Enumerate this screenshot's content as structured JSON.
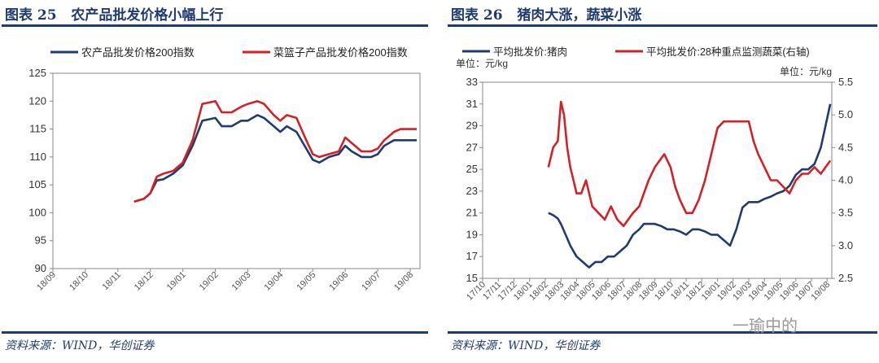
{
  "colors": {
    "navy": "#1f3b70",
    "red": "#d42027",
    "axis": "#888888",
    "text": "#333333"
  },
  "watermark": "一瑜中的",
  "chart_data": [
    {
      "type": "line",
      "figure_label": "图表 25",
      "title": "农产品批发价格小幅上行",
      "source": "资料来源：WIND，华创证券",
      "ylim": [
        90,
        125
      ],
      "yticks": [
        90,
        95,
        100,
        105,
        110,
        115,
        120,
        125
      ],
      "x_labels": [
        "18/09",
        "18/10",
        "18/11",
        "18/12",
        "19/01",
        "19/02",
        "19/03",
        "19/04",
        "19/05",
        "19/06",
        "19/07",
        "19/08"
      ],
      "x_range": [
        0,
        11.3
      ],
      "series": [
        {
          "name": "农产品批发价格200指数",
          "color": "navy",
          "x": [
            2.5,
            2.8,
            3.0,
            3.2,
            3.4,
            3.7,
            4.0,
            4.3,
            4.6,
            5.0,
            5.2,
            5.5,
            5.8,
            6.0,
            6.3,
            6.5,
            6.8,
            7.0,
            7.2,
            7.5,
            7.8,
            8.0,
            8.2,
            8.5,
            8.8,
            9.0,
            9.2,
            9.5,
            9.8,
            10.0,
            10.2,
            10.5,
            10.7,
            11.0,
            11.2
          ],
          "values": [
            102.0,
            102.5,
            103.5,
            105.8,
            106.0,
            107.0,
            108.5,
            112.0,
            116.5,
            117.0,
            115.5,
            115.5,
            116.5,
            116.5,
            117.5,
            117.0,
            115.5,
            114.5,
            115.5,
            114.5,
            111.5,
            109.5,
            109.0,
            110.0,
            110.5,
            112.0,
            111.0,
            110.0,
            110.0,
            110.5,
            112.0,
            113.0,
            113.0,
            113.0,
            113.0
          ]
        },
        {
          "name": "菜篮子产品批发价格200指数",
          "color": "red",
          "x": [
            2.5,
            2.8,
            3.0,
            3.2,
            3.4,
            3.7,
            4.0,
            4.3,
            4.6,
            5.0,
            5.2,
            5.5,
            5.8,
            6.0,
            6.3,
            6.5,
            6.8,
            7.0,
            7.2,
            7.5,
            7.8,
            8.0,
            8.2,
            8.5,
            8.8,
            9.0,
            9.2,
            9.5,
            9.8,
            10.0,
            10.2,
            10.5,
            10.7,
            11.0,
            11.2
          ],
          "values": [
            102.0,
            102.5,
            103.5,
            106.5,
            107.0,
            107.5,
            109.0,
            113.0,
            119.5,
            120.0,
            118.0,
            118.0,
            119.0,
            119.5,
            120.0,
            119.5,
            117.5,
            116.5,
            117.5,
            117.0,
            113.0,
            110.5,
            110.0,
            110.5,
            111.0,
            113.5,
            112.5,
            111.0,
            111.0,
            111.5,
            113.0,
            114.5,
            115.0,
            115.0,
            115.0
          ]
        }
      ]
    },
    {
      "type": "line",
      "figure_label": "图表 26",
      "title": "猪肉大涨，蔬菜小涨",
      "source": "资料来源：WIND，华创证券",
      "unit_left": "单位：元/kg",
      "unit_right": "单位：元/kg",
      "ylim_left": [
        15,
        33
      ],
      "yticks_left": [
        15,
        17,
        19,
        21,
        23,
        25,
        27,
        29,
        31,
        33
      ],
      "ylim_right": [
        2.5,
        5.5
      ],
      "yticks_right": [
        "2.5",
        "3.0",
        "3.5",
        "4.0",
        "4.5",
        "5.0",
        "5.5"
      ],
      "x_labels": [
        "17/10",
        "17/11",
        "17/12",
        "18/01",
        "18/02",
        "18/03",
        "18/04",
        "18/05",
        "18/06",
        "18/07",
        "18/08",
        "18/09",
        "18/10",
        "18/11",
        "18/12",
        "19/01",
        "19/02",
        "19/03",
        "19/04",
        "19/05",
        "19/06",
        "19/07",
        "19/08"
      ],
      "x_range": [
        0,
        22.3
      ],
      "series": [
        {
          "name": "平均批发价:猪肉",
          "axis": "left",
          "color": "navy",
          "x": [
            4.2,
            4.5,
            4.8,
            5.0,
            5.3,
            5.6,
            6.0,
            6.4,
            6.8,
            7.2,
            7.6,
            8.0,
            8.4,
            8.8,
            9.2,
            9.6,
            10.0,
            10.3,
            10.6,
            11.0,
            11.4,
            11.8,
            12.2,
            12.6,
            13.0,
            13.4,
            13.8,
            14.2,
            14.6,
            15.0,
            15.4,
            15.8,
            16.2,
            16.6,
            17.0,
            17.3,
            17.6,
            18.0,
            18.4,
            18.8,
            19.2,
            19.6,
            20.0,
            20.4,
            20.8,
            21.2,
            21.6,
            21.9,
            22.2
          ],
          "values": [
            21.0,
            20.8,
            20.5,
            20.0,
            19.0,
            18.0,
            17.0,
            16.5,
            16.0,
            16.5,
            16.5,
            17.0,
            17.0,
            17.5,
            18.0,
            19.0,
            19.5,
            20.0,
            20.0,
            20.0,
            19.8,
            19.5,
            19.5,
            19.3,
            19.0,
            19.5,
            19.5,
            19.3,
            19.0,
            19.0,
            18.5,
            18.0,
            19.5,
            21.5,
            22.0,
            22.0,
            22.0,
            22.3,
            22.5,
            22.8,
            23.0,
            23.5,
            24.5,
            25.0,
            25.0,
            25.5,
            27.0,
            29.0,
            31.0
          ]
        },
        {
          "name": "平均批发价:28种重点监测蔬菜(右轴)",
          "axis": "right",
          "color": "red",
          "x": [
            4.2,
            4.5,
            4.8,
            5.0,
            5.2,
            5.4,
            5.6,
            5.8,
            6.0,
            6.3,
            6.6,
            7.0,
            7.4,
            7.8,
            8.2,
            8.6,
            9.0,
            9.3,
            9.6,
            10.0,
            10.3,
            10.6,
            11.0,
            11.3,
            11.6,
            12.0,
            12.3,
            12.6,
            13.0,
            13.4,
            13.8,
            14.2,
            14.6,
            15.0,
            15.4,
            15.8,
            16.2,
            16.6,
            17.0,
            17.3,
            17.6,
            18.0,
            18.4,
            18.8,
            19.2,
            19.6,
            20.0,
            20.4,
            20.8,
            21.2,
            21.6,
            21.9,
            22.2
          ],
          "values": [
            4.2,
            4.5,
            4.6,
            5.2,
            5.0,
            4.5,
            4.2,
            4.0,
            3.8,
            3.8,
            4.0,
            3.6,
            3.5,
            3.4,
            3.6,
            3.4,
            3.3,
            3.4,
            3.5,
            3.6,
            3.8,
            4.0,
            4.2,
            4.3,
            4.4,
            4.2,
            3.9,
            3.7,
            3.5,
            3.5,
            3.7,
            4.0,
            4.4,
            4.8,
            4.9,
            4.9,
            4.9,
            4.9,
            4.9,
            4.6,
            4.4,
            4.2,
            4.0,
            4.0,
            3.9,
            3.8,
            4.0,
            4.1,
            4.1,
            4.2,
            4.1,
            4.2,
            4.3
          ]
        }
      ]
    }
  ]
}
